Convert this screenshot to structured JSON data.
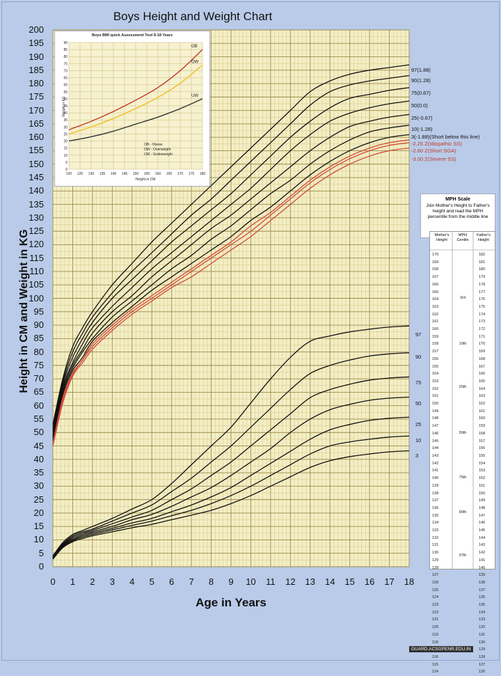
{
  "title": "Boys Height and Weight Chart",
  "colors": {
    "background": "#b9cbe8",
    "plot_bg": "#f3eec4",
    "grid": "#c9b97a",
    "curve": "#111111",
    "red_curve": "#d04a3a"
  },
  "chart_data": [
    {
      "type": "line",
      "title": "Boys Height and Weight Chart",
      "xlabel": "Age in Years",
      "ylabel": "Height in CM and Weight in KG",
      "xlim": [
        0,
        18
      ],
      "ylim": [
        0,
        200
      ],
      "xticks": [
        0,
        1,
        2,
        3,
        4,
        5,
        6,
        7,
        8,
        9,
        10,
        11,
        12,
        13,
        14,
        15,
        16,
        17,
        18
      ],
      "yticks": [
        0,
        5,
        10,
        15,
        20,
        25,
        30,
        35,
        40,
        45,
        50,
        55,
        60,
        65,
        70,
        75,
        80,
        85,
        90,
        95,
        100,
        105,
        110,
        115,
        120,
        125,
        130,
        135,
        140,
        145,
        150,
        155,
        160,
        165,
        170,
        175,
        180,
        185,
        190,
        195,
        200
      ],
      "grid": true,
      "x": [
        0,
        0.5,
        1,
        1.5,
        2,
        3,
        4,
        5,
        6,
        7,
        8,
        9,
        10,
        11,
        12,
        13,
        14,
        15,
        16,
        17,
        18
      ],
      "height_series": [
        {
          "name": "97(1.88)",
          "color": "#111111",
          "values": [
            53,
            70,
            82,
            89,
            95,
            105,
            113,
            121,
            128,
            135,
            142,
            149,
            156,
            163,
            170,
            177,
            181,
            183.5,
            185,
            186,
            187
          ]
        },
        {
          "name": "90(1.28)",
          "color": "#111111",
          "values": [
            52,
            69,
            80,
            87,
            93,
            102,
            110,
            117,
            124,
            131,
            137,
            144,
            151,
            158,
            165,
            172,
            177,
            179.5,
            181,
            182,
            183
          ]
        },
        {
          "name": "75(0.67)",
          "color": "#111111",
          "values": [
            51,
            68,
            78,
            85,
            91,
            100,
            107,
            114,
            121,
            127,
            133,
            139,
            146,
            153,
            160,
            166,
            171,
            174.5,
            176,
            177.5,
            178.5
          ]
        },
        {
          "name": "50(0.0)",
          "color": "#111111",
          "values": [
            50,
            67,
            76,
            83,
            89,
            97,
            104,
            111,
            117,
            123,
            129,
            135,
            141,
            148,
            155,
            161,
            166,
            169,
            171,
            172.5,
            173.5
          ]
        },
        {
          "name": "25(-0.67)",
          "color": "#111111",
          "values": [
            49,
            66,
            75,
            81,
            87,
            95,
            101,
            108,
            114,
            120,
            126,
            131,
            137,
            143,
            149,
            155,
            160,
            164,
            166,
            167.5,
            168.5
          ]
        },
        {
          "name": "10(-1.28)",
          "color": "#111111",
          "values": [
            48,
            65,
            74,
            80,
            85,
            93,
            99,
            105,
            111,
            116,
            122,
            127,
            133,
            139,
            144,
            150,
            155,
            159,
            162,
            163.5,
            164.5
          ]
        },
        {
          "name": "3(-1.88)(Short below this line)",
          "color": "#111111",
          "values": [
            47,
            64,
            73,
            78,
            84,
            91,
            97,
            103,
            108,
            113,
            118,
            123,
            129,
            134,
            140,
            146,
            151,
            155,
            158,
            160,
            161
          ]
        },
        {
          "name": "-2.25 Z(Idiopathic SS)",
          "color": "#d04a3a",
          "values": [
            46,
            63,
            72,
            77,
            83,
            90,
            96,
            101,
            106,
            111,
            116,
            121,
            127,
            132,
            138,
            144,
            149,
            153,
            156,
            158,
            159
          ]
        },
        {
          "name": "-2.60 Z(Short SGA)",
          "color": "#d04a3a",
          "values": [
            45.5,
            62,
            71.5,
            77,
            82,
            89,
            95,
            100,
            105,
            110,
            115,
            120,
            125,
            131,
            137,
            143,
            148,
            152,
            155,
            157,
            158
          ]
        },
        {
          "name": "-3.00 Z(Severe SS)",
          "color": "#d04a3a",
          "values": [
            45,
            61,
            71,
            76,
            81,
            88,
            94,
            99,
            104,
            108,
            113,
            118,
            123,
            129,
            135,
            141,
            146,
            150,
            153,
            155,
            156
          ]
        }
      ],
      "weight_series": [
        {
          "name": "97",
          "color": "#111111",
          "values": [
            4,
            9,
            12,
            13.5,
            15,
            18,
            21.5,
            25,
            31,
            38,
            45,
            52,
            61,
            70,
            78,
            84,
            86,
            87.5,
            88.5
          ]
        },
        {
          "name": "90",
          "color": "#111111",
          "values": [
            3.8,
            8.5,
            11.5,
            13,
            14,
            17,
            20,
            23,
            28,
            33,
            39,
            45,
            52,
            59,
            66,
            72,
            75,
            77,
            78.5
          ]
        },
        {
          "name": "75",
          "color": "#111111",
          "values": [
            3.6,
            8.2,
            11,
            12.5,
            13.5,
            16,
            18.5,
            21,
            25,
            29,
            34,
            39,
            45,
            51,
            57,
            63,
            66,
            68,
            69.5
          ]
        },
        {
          "name": "50",
          "color": "#111111",
          "values": [
            3.4,
            8,
            10.5,
            12,
            13,
            15,
            17.5,
            19.5,
            22.5,
            26,
            29.5,
            34,
            39,
            44,
            50,
            55,
            58.5,
            60.5,
            62
          ]
        },
        {
          "name": "25",
          "color": "#111111",
          "values": [
            3.2,
            7.7,
            10,
            11.5,
            12.5,
            14.3,
            16.3,
            18,
            20.5,
            23,
            26,
            29.5,
            34,
            38.5,
            43,
            47.5,
            51,
            53,
            54.5
          ]
        },
        {
          "name": "10",
          "color": "#111111",
          "values": [
            3,
            7.4,
            9.7,
            11,
            12,
            13.7,
            15.4,
            17,
            19,
            21,
            23.5,
            26.5,
            30,
            34,
            38,
            42,
            45,
            46.5,
            47.5
          ]
        },
        {
          "name": "3",
          "color": "#111111",
          "values": [
            2.8,
            7.1,
            9.3,
            10.5,
            11.5,
            13,
            14.5,
            15.8,
            17.5,
            19.2,
            21,
            23.5,
            26.5,
            30,
            33.5,
            37,
            39.5,
            41,
            42
          ]
        }
      ],
      "weight_x": [
        0,
        0.5,
        1,
        1.5,
        2,
        3,
        4,
        5,
        6,
        7,
        8,
        9,
        10,
        11,
        12,
        13,
        14,
        15,
        16
      ]
    },
    {
      "type": "line",
      "title": "Boys BMI quick Assessment Tool 8-18 Years",
      "xlabel": "Height in CM",
      "ylabel": "Weight in KG",
      "xlim": [
        120,
        180
      ],
      "ylim": [
        0,
        90
      ],
      "xticks": [
        120,
        125,
        130,
        135,
        140,
        145,
        150,
        155,
        160,
        165,
        170,
        175,
        180
      ],
      "yticks": [
        0,
        5,
        10,
        15,
        20,
        25,
        30,
        35,
        40,
        45,
        50,
        55,
        60,
        65,
        70,
        75,
        80,
        85,
        90
      ],
      "grid": true,
      "x": [
        120,
        130,
        140,
        150,
        160,
        170,
        180
      ],
      "series": [
        {
          "name": "OB",
          "color": "#c0392b",
          "values": [
            28,
            34,
            41,
            49,
            58,
            70,
            85
          ]
        },
        {
          "name": "OW",
          "color": "#f0c020",
          "values": [
            25,
            30,
            36,
            43,
            51,
            61,
            74
          ]
        },
        {
          "name": "UW",
          "color": "#333333",
          "values": [
            20,
            23,
            27,
            32,
            37,
            43,
            50
          ]
        }
      ],
      "legend": [
        "OB - Obese",
        "OW - Overweight",
        "UW - Underweight"
      ]
    }
  ],
  "mph": {
    "title": "MPH Scale",
    "description": "Join Mother's Height to Father's height and read the MPH percentile from the middle line",
    "headers": [
      "Mother's Height",
      "MPH Centile",
      "Father's Height"
    ],
    "mother_heights": [
      "170",
      "169",
      "168",
      "167",
      "166",
      "165",
      "164",
      "163",
      "162",
      "161",
      "160",
      "159",
      "158",
      "157",
      "156",
      "155",
      "154",
      "153",
      "152",
      "151",
      "150",
      "149",
      "148",
      "147",
      "146",
      "145",
      "144",
      "143",
      "142",
      "141",
      "140",
      "139",
      "138",
      "137",
      "136",
      "135",
      "134",
      "133",
      "132",
      "131",
      "130",
      "129",
      "128",
      "127",
      "126",
      "125",
      "124",
      "123",
      "122",
      "121",
      "120",
      "119",
      "118",
      "117",
      "116",
      "115",
      "114"
    ],
    "father_heights": [
      "182",
      "181",
      "180",
      "179",
      "178",
      "177",
      "176",
      "175",
      "174",
      "173",
      "172",
      "171",
      "170",
      "169",
      "168",
      "167",
      "166",
      "165",
      "164",
      "163",
      "162",
      "161",
      "160",
      "159",
      "158",
      "157",
      "156",
      "155",
      "154",
      "153",
      "152",
      "151",
      "150",
      "149",
      "148",
      "147",
      "146",
      "145",
      "144",
      "143",
      "142",
      "141",
      "140",
      "139",
      "138",
      "137",
      "136",
      "135",
      "134",
      "133",
      "132",
      "131",
      "130",
      "129",
      "128",
      "127",
      "126"
    ],
    "centiles": [
      "3rd",
      "10th",
      "25th",
      "50th",
      "75th",
      "90th",
      "97th"
    ]
  },
  "watermark": "GUARD.ACSGPENR.EDU.IN"
}
